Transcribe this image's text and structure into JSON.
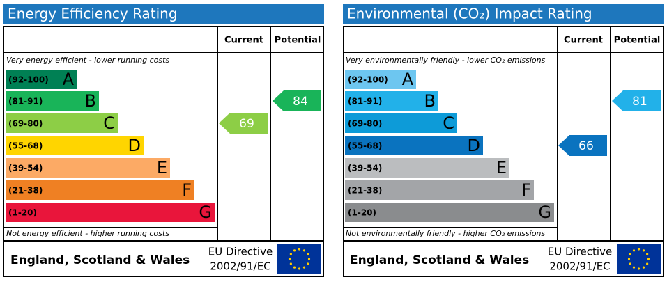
{
  "chart_data": [
    {
      "type": "epc",
      "title": "Energy Efficiency Rating",
      "columns": [
        "Current",
        "Potential"
      ],
      "top_note": "Very energy efficient - lower running costs",
      "bottom_note": "Not energy efficient - higher running costs",
      "categories": [
        "(92-100)",
        "(81-91)",
        "(69-80)",
        "(55-68)",
        "(39-54)",
        "(21-38)",
        "(1-20)"
      ],
      "letters": [
        "A",
        "B",
        "C",
        "D",
        "E",
        "F",
        "G"
      ],
      "colors": [
        "#008054",
        "#19b459",
        "#8dce46",
        "#ffd500",
        "#fcaa65",
        "#ef8023",
        "#e9153b"
      ],
      "current": 69,
      "potential": 84,
      "region": "England, Scotland & Wales",
      "directive": [
        "EU Directive",
        "2002/91/EC"
      ]
    },
    {
      "type": "epc",
      "title": "Environmental (CO₂) Impact Rating",
      "columns": [
        "Current",
        "Potential"
      ],
      "top_note": "Very environmentally friendly - lower CO₂ emissions",
      "bottom_note": "Not environmentally friendly - higher CO₂ emissions",
      "categories": [
        "(92-100)",
        "(81-91)",
        "(69-80)",
        "(55-68)",
        "(39-54)",
        "(21-38)",
        "(1-20)"
      ],
      "letters": [
        "A",
        "B",
        "C",
        "D",
        "E",
        "F",
        "G"
      ],
      "colors": [
        "#6dc6f0",
        "#22b1e9",
        "#0d9bd8",
        "#0a73bf",
        "#bbbdbf",
        "#a3a5a8",
        "#8a8c8e"
      ],
      "current": 66,
      "potential": 81,
      "region": "England, Scotland & Wales",
      "directive": [
        "EU Directive",
        "2002/91/EC"
      ]
    }
  ]
}
